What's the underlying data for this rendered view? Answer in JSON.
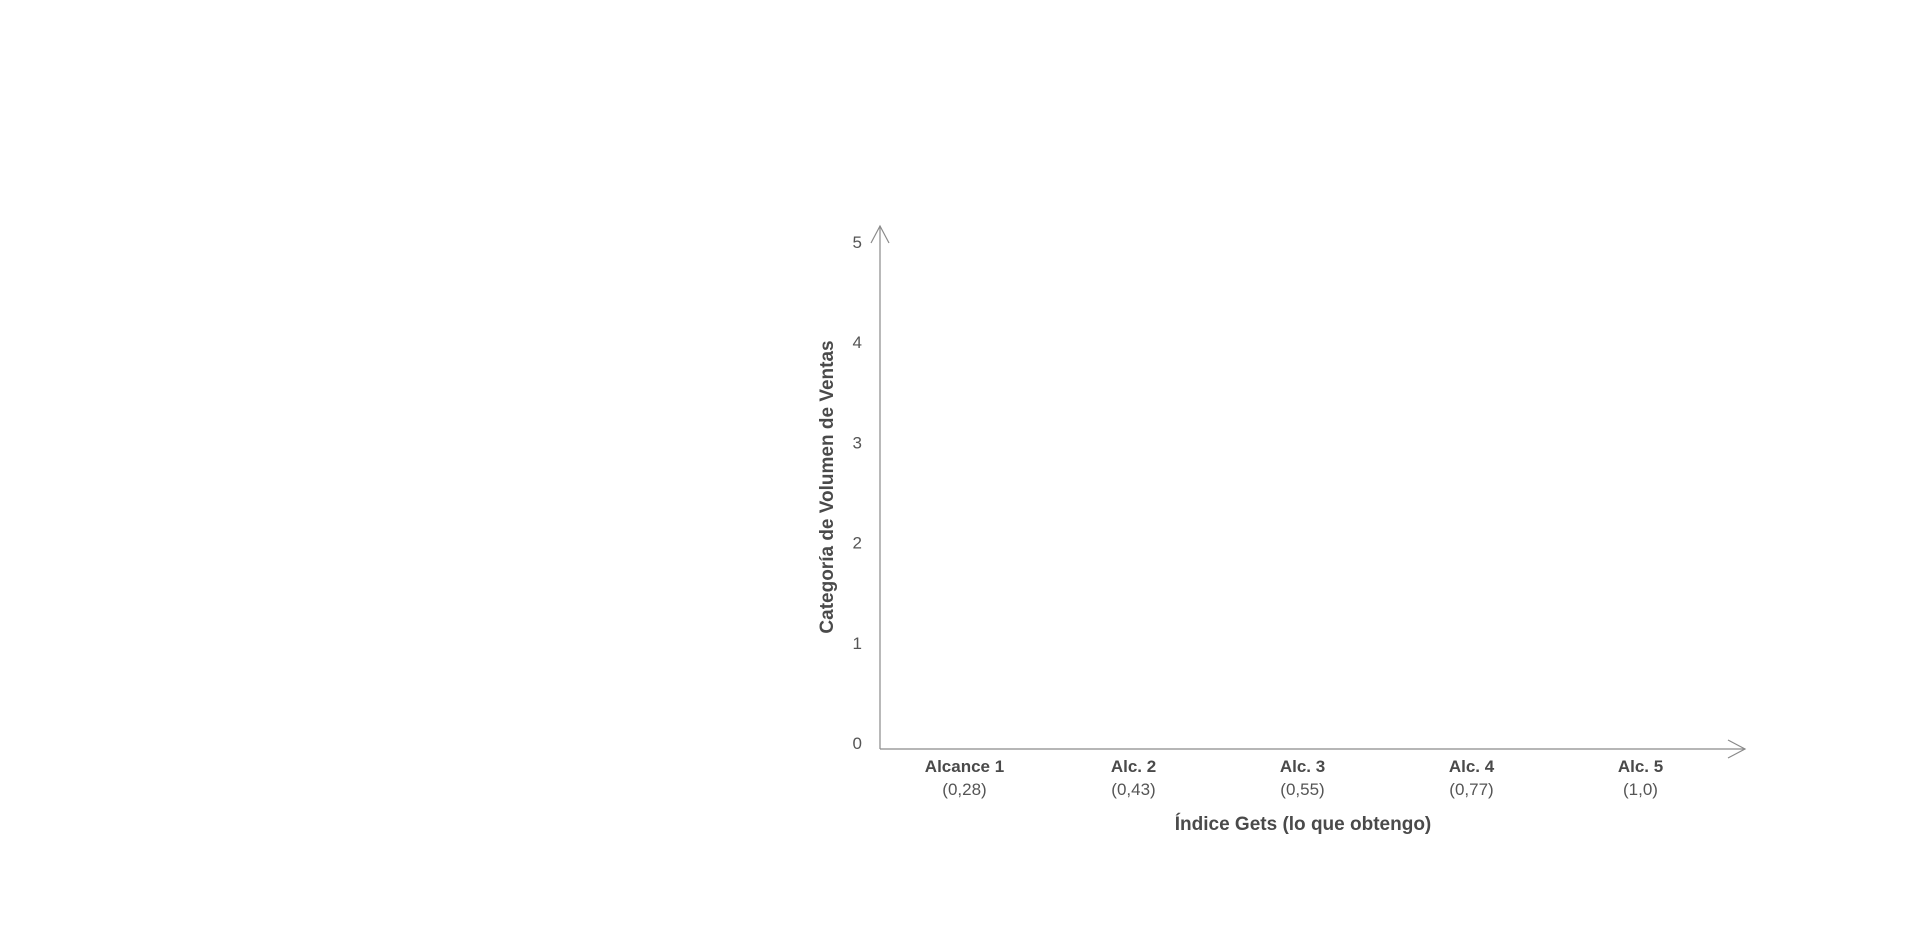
{
  "chart_data": {
    "type": "scatter",
    "title": "",
    "xlabel": "Índice Gets (lo que obtengo)",
    "ylabel": "Categoría de Volumen de Ventas",
    "categories": [
      {
        "label": "Alcance 1",
        "value_label": "(0,28)",
        "value": 0.28
      },
      {
        "label": "Alc. 2",
        "value_label": "(0,43)",
        "value": 0.43
      },
      {
        "label": "Alc. 3",
        "value_label": "(0,55)",
        "value": 0.55
      },
      {
        "label": "Alc. 4",
        "value_label": "(0,77)",
        "value": 0.77
      },
      {
        "label": "Alc. 5",
        "value_label": "(1,0)",
        "value": 1.0
      }
    ],
    "y_ticks": [
      "0",
      "1",
      "2",
      "3",
      "4",
      "5"
    ],
    "ylim": [
      0,
      5
    ],
    "series": [],
    "grid": false,
    "colors": {
      "axis": "#8a8a8a",
      "text": "#4a4a4a"
    }
  }
}
